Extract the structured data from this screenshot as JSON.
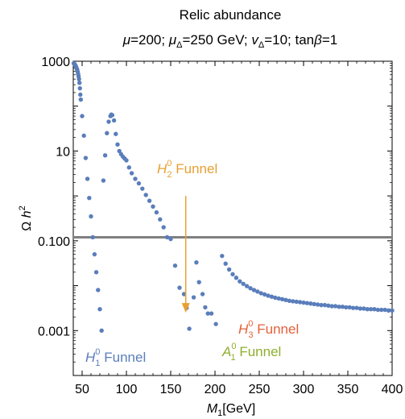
{
  "chart_data": {
    "type": "scatter",
    "title": "Relic abundance",
    "subtitle": {
      "mu": "μ",
      "mu_val": "=200; ",
      "mudelta": "μ",
      "mudelta_sub": "Δ",
      "mudelta_val": "=250 GeV; ",
      "vdelta": "v",
      "vdelta_sub": "Δ",
      "vdelta_val": "=10; tan",
      "beta": "β",
      "beta_val": "=1"
    },
    "xlabel": {
      "main": "M",
      "sub": "1",
      "unit": "[GeV]"
    },
    "ylabel": {
      "omega": "Ω ",
      "h": "h",
      "sup": "2"
    },
    "x_range": [
      40,
      400
    ],
    "y_range_log10": [
      -4,
      3
    ],
    "y_scale": "log",
    "x_ticks": [
      50,
      100,
      150,
      200,
      250,
      300,
      350,
      400
    ],
    "x_tick_labels": [
      "50",
      "100",
      "150",
      "200",
      "250",
      "300",
      "350",
      "400"
    ],
    "y_ticks": [
      1000,
      10,
      0.1,
      0.001
    ],
    "y_tick_labels": [
      "1000",
      "10",
      "0.100",
      "0.001"
    ],
    "reference_line": {
      "y": 0.12,
      "color": "#808080"
    },
    "series": [
      {
        "color": "#5a7ebb",
        "points": [
          [
            40.5,
            900
          ],
          [
            41,
            880
          ],
          [
            41.5,
            860
          ],
          [
            42,
            830
          ],
          [
            42.5,
            800
          ],
          [
            43,
            760
          ],
          [
            43.5,
            720
          ],
          [
            44,
            680
          ],
          [
            44.5,
            640
          ],
          [
            45,
            580
          ],
          [
            45.5,
            520
          ],
          [
            46,
            460
          ],
          [
            46.5,
            400
          ],
          [
            47,
            330
          ],
          [
            47.5,
            250
          ],
          [
            48,
            180
          ],
          [
            48.5,
            140
          ],
          [
            50,
            60
          ],
          [
            52,
            22
          ],
          [
            54,
            7
          ],
          [
            56,
            2.4
          ],
          [
            58,
            0.9
          ],
          [
            60,
            0.35
          ],
          [
            62,
            0.12
          ],
          [
            64,
            0.05
          ],
          [
            66,
            0.02
          ],
          [
            68,
            0.008
          ],
          [
            70,
            0.003
          ],
          [
            72,
            0.001
          ],
          [
            74,
            2.2
          ],
          [
            76,
            8
          ],
          [
            78,
            25
          ],
          [
            80,
            45
          ],
          [
            82,
            60
          ],
          [
            83,
            65
          ],
          [
            84,
            63
          ],
          [
            86,
            48
          ],
          [
            88,
            24
          ],
          [
            90,
            14
          ],
          [
            92,
            10
          ],
          [
            94,
            8.5
          ],
          [
            96,
            7.5
          ],
          [
            98,
            6.8
          ],
          [
            100,
            6.2
          ],
          [
            103,
            4.3
          ],
          [
            106,
            3.2
          ],
          [
            110,
            2.4
          ],
          [
            114,
            1.9
          ],
          [
            118,
            1.45
          ],
          [
            122,
            1.05
          ],
          [
            126,
            0.78
          ],
          [
            130,
            0.58
          ],
          [
            134,
            0.43
          ],
          [
            138,
            0.3
          ],
          [
            142,
            0.2
          ],
          [
            146,
            0.12
          ],
          [
            150,
            0.11
          ],
          [
            155,
            0.028
          ],
          [
            160,
            0.009
          ],
          [
            165,
            0.0065
          ],
          [
            168,
            0.0032
          ],
          [
            171,
            0.0011
          ],
          [
            176,
            0.0055
          ],
          [
            179,
            0.033
          ],
          [
            182,
            0.012
          ],
          [
            186,
            0.0065
          ],
          [
            189,
            0.0033
          ],
          [
            192,
            0.0024
          ],
          [
            196,
            0.0024
          ],
          [
            201,
            0.0014
          ],
          [
            208,
            0.046
          ],
          [
            212,
            0.031
          ],
          [
            216,
            0.023
          ],
          [
            220,
            0.018
          ],
          [
            224,
            0.015
          ],
          [
            228,
            0.0125
          ],
          [
            232,
            0.011
          ],
          [
            236,
            0.0098
          ],
          [
            240,
            0.0088
          ],
          [
            244,
            0.008
          ],
          [
            248,
            0.0074
          ],
          [
            252,
            0.0068
          ],
          [
            256,
            0.0064
          ],
          [
            260,
            0.006
          ],
          [
            264,
            0.0057
          ],
          [
            268,
            0.0054
          ],
          [
            272,
            0.0052
          ],
          [
            276,
            0.005
          ],
          [
            280,
            0.0048
          ],
          [
            284,
            0.0046
          ],
          [
            288,
            0.0045
          ],
          [
            292,
            0.0044
          ],
          [
            296,
            0.0043
          ],
          [
            300,
            0.0042
          ],
          [
            304,
            0.0041
          ],
          [
            308,
            0.004
          ],
          [
            312,
            0.0039
          ],
          [
            316,
            0.0038
          ],
          [
            320,
            0.0037
          ],
          [
            324,
            0.0037
          ],
          [
            328,
            0.0036
          ],
          [
            332,
            0.0035
          ],
          [
            336,
            0.0035
          ],
          [
            340,
            0.0034
          ],
          [
            344,
            0.0034
          ],
          [
            348,
            0.0033
          ],
          [
            352,
            0.0033
          ],
          [
            356,
            0.0032
          ],
          [
            360,
            0.0032
          ],
          [
            364,
            0.0031
          ],
          [
            368,
            0.0031
          ],
          [
            372,
            0.003
          ],
          [
            376,
            0.003
          ],
          [
            380,
            0.003
          ],
          [
            384,
            0.0029
          ],
          [
            388,
            0.0029
          ],
          [
            392,
            0.0029
          ],
          [
            396,
            0.0028
          ],
          [
            400,
            0.0028
          ]
        ]
      }
    ],
    "annotations": {
      "h1": {
        "base": "H",
        "sub": "1",
        "sup": "0",
        "text": " Funnel",
        "color": "#5a7ebb"
      },
      "h2": {
        "base": "H",
        "sub": "2",
        "sup": "0",
        "text": " Funnel",
        "color": "#e8a033"
      },
      "h3": {
        "base": "H",
        "sub": "3",
        "sup": "0",
        "text": " Funnel",
        "color": "#e4603a"
      },
      "a1": {
        "base": "A",
        "sub": "1",
        "sup": "0",
        "text": " Funnel",
        "color": "#8fae2f"
      }
    },
    "arrow": {
      "color": "#e8a033",
      "x": 167,
      "y_from": 1.0,
      "y_to": 0.0025
    },
    "grid": false
  }
}
